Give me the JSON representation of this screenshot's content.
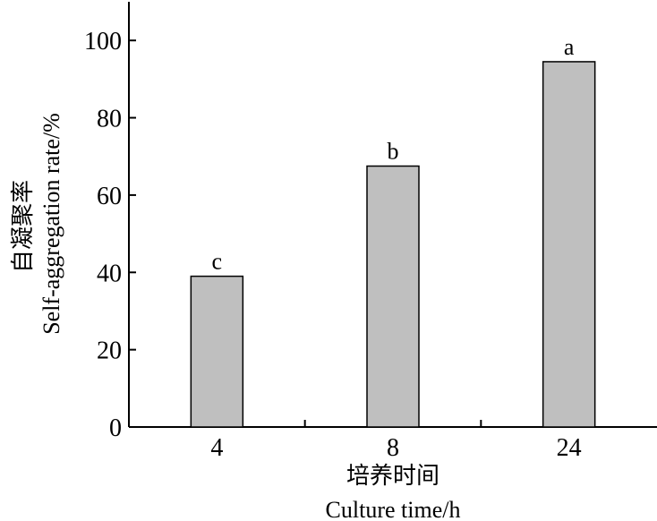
{
  "chart_data": {
    "type": "bar",
    "categories": [
      "4",
      "8",
      "24"
    ],
    "values": [
      39,
      67.5,
      94.5
    ],
    "significance_labels": [
      "c",
      "b",
      "a"
    ],
    "ylim": [
      0,
      110
    ],
    "yticks": [
      "0",
      "20",
      "40",
      "60",
      "80",
      "100"
    ],
    "ytick_values": [
      0,
      20,
      40,
      60,
      80,
      100
    ],
    "xlabel_cn": "培养时间",
    "xlabel_en": "Culture time/h",
    "ylabel_cn": "自凝聚率",
    "ylabel_en": "Self-aggregation rate/%",
    "bar_color": "#bfbfbf",
    "bar_edge_color": "#000000",
    "grid": false
  }
}
